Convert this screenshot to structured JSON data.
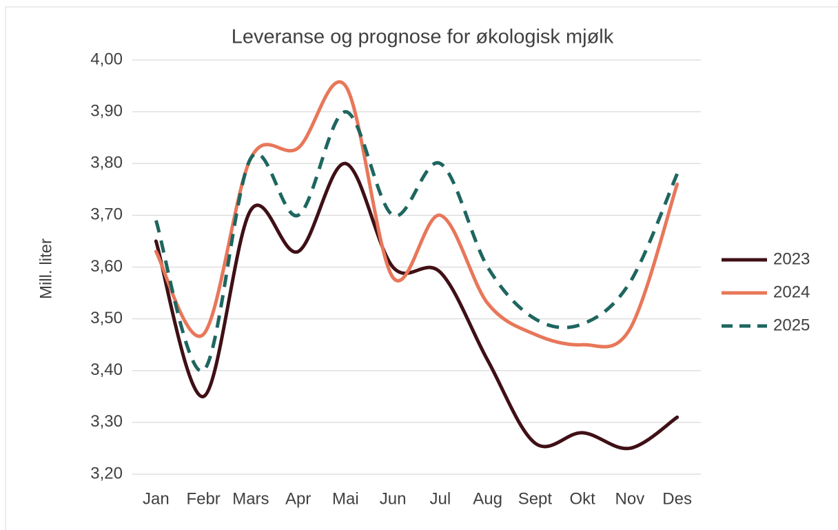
{
  "chart_data": {
    "type": "line",
    "title": "Leveranse og prognose for økologisk mjølk",
    "y_label": "Mill. liter",
    "categories": [
      "Jan",
      "Febr",
      "Mars",
      "Apr",
      "Mai",
      "Jun",
      "Jul",
      "Aug",
      "Sept",
      "Okt",
      "Nov",
      "Des"
    ],
    "series": [
      {
        "name": "2023",
        "color": "#3f1016",
        "dashed": false,
        "values": [
          3.65,
          3.35,
          3.71,
          3.63,
          3.8,
          3.6,
          3.59,
          3.42,
          3.26,
          3.28,
          3.25,
          3.31
        ]
      },
      {
        "name": "2024",
        "color": "#e8775a",
        "dashed": false,
        "values": [
          3.63,
          3.47,
          3.81,
          3.83,
          3.95,
          3.58,
          3.7,
          3.53,
          3.47,
          3.45,
          3.48,
          3.76
        ]
      },
      {
        "name": "2025",
        "color": "#1e6660",
        "dashed": true,
        "values": [
          3.69,
          3.4,
          3.81,
          3.7,
          3.9,
          3.7,
          3.8,
          3.6,
          3.5,
          3.49,
          3.57,
          3.78
        ]
      }
    ],
    "ylim": [
      3.2,
      4.0
    ],
    "yticks": [
      {
        "value": 3.2,
        "label": "3,20"
      },
      {
        "value": 3.3,
        "label": "3,30"
      },
      {
        "value": 3.4,
        "label": "3,40"
      },
      {
        "value": 3.5,
        "label": "3,50"
      },
      {
        "value": 3.6,
        "label": "3,60"
      },
      {
        "value": 3.7,
        "label": "3,70"
      },
      {
        "value": 3.8,
        "label": "3,80"
      },
      {
        "value": 3.9,
        "label": "3,90"
      },
      {
        "value": 4.0,
        "label": "4,00"
      }
    ],
    "grid": true,
    "legend": "right"
  }
}
